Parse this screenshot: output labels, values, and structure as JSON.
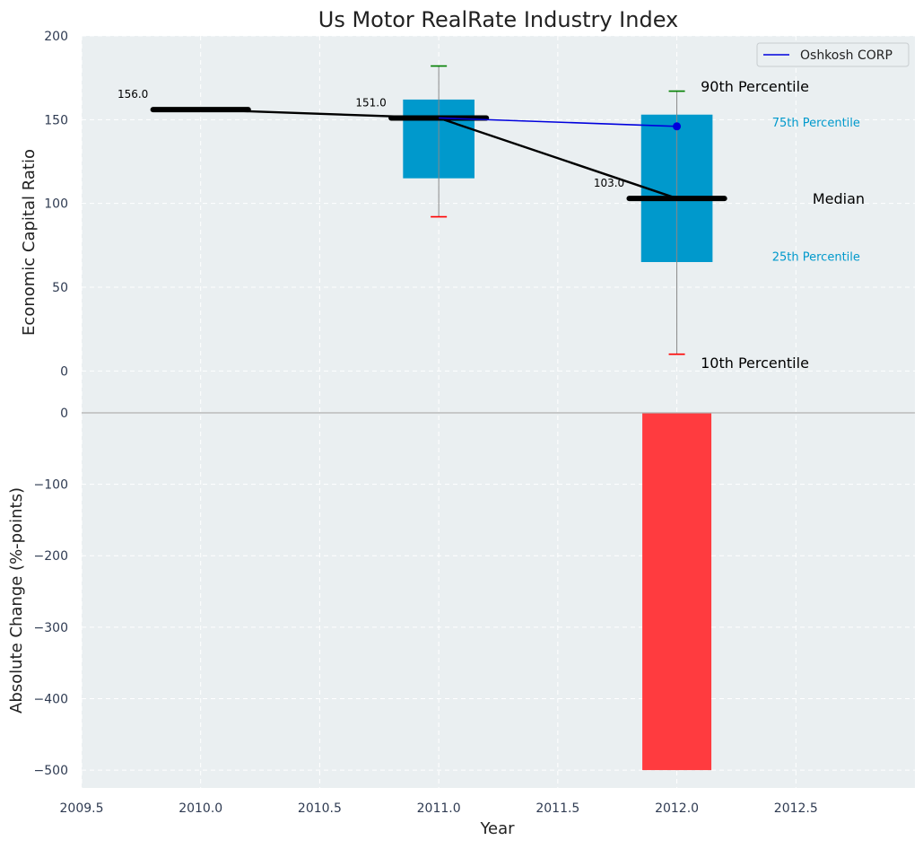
{
  "chart_data": [
    {
      "panel": "top",
      "type": "box",
      "title": "Us Motor RealRate Industry Index",
      "ylabel": "Economic Capital Ratio",
      "xlim": [
        2009.5,
        2013.0
      ],
      "ylim": [
        -25,
        200
      ],
      "yticks": [
        0,
        50,
        100,
        150,
        200
      ],
      "grid": true,
      "legend": {
        "position": "top-right",
        "entries": [
          "Oshkosh CORP"
        ]
      },
      "boxes": [
        {
          "x": 2011.0,
          "p25": 115,
          "p75": 162,
          "p10": 92,
          "p90": 182
        },
        {
          "x": 2012.0,
          "p25": 65,
          "p75": 153,
          "p10": 10,
          "p90": 167
        }
      ],
      "median": {
        "x": [
          2010.0,
          2011.0,
          2012.0
        ],
        "values": [
          156,
          151,
          103
        ],
        "labels": [
          "156.0",
          "151.0",
          "103.0"
        ]
      },
      "series": [
        {
          "name": "Oshkosh CORP",
          "x": [
            2011.0,
            2012.0
          ],
          "values": [
            151,
            146
          ],
          "color": "#0000dd"
        }
      ],
      "annotations": [
        {
          "text": "90th Percentile",
          "x": 2012.1,
          "y": 170
        },
        {
          "text": "75th Percentile",
          "x": 2012.4,
          "y": 148
        },
        {
          "text": "Median",
          "x": 2012.57,
          "y": 103
        },
        {
          "text": "25th Percentile",
          "x": 2012.4,
          "y": 68
        },
        {
          "text": "10th Percentile",
          "x": 2012.1,
          "y": 5
        }
      ]
    },
    {
      "panel": "bottom",
      "type": "bar",
      "xlabel": "Year",
      "ylabel": "Absolute Change (%-points)",
      "xlim": [
        2009.5,
        2013.0
      ],
      "ylim": [
        -525,
        0
      ],
      "yticks": [
        0,
        -100,
        -200,
        -300,
        -400,
        -500
      ],
      "xticks": [
        2009.5,
        2010.0,
        2010.5,
        2011.0,
        2011.5,
        2012.0,
        2012.5
      ],
      "xtick_labels": [
        "2009.5",
        "2010.0",
        "2010.5",
        "2011.0",
        "2011.5",
        "2012.0",
        "2012.5"
      ],
      "grid": true,
      "x": [
        2012.0
      ],
      "values": [
        -500
      ]
    }
  ],
  "colors": {
    "box": "#0099cc",
    "median": "#000000",
    "p90_cap": "#008000",
    "p10_cap": "#ff0000",
    "whisker": "#888888",
    "bar_negative": "#ff3b3f",
    "annotation_blue": "#0099cc",
    "axes_background": "#eaeff1",
    "grid": "#ffffff"
  }
}
